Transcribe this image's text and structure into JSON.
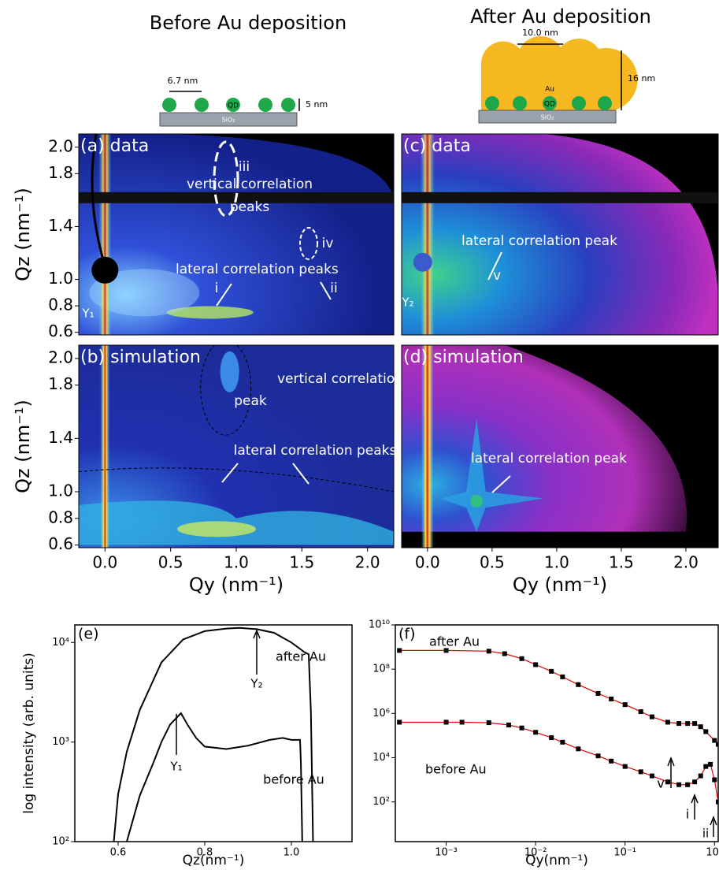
{
  "headers": [
    "Before Au deposition",
    "After Au deposition"
  ],
  "schematic_before": {
    "spacing": "6.7 nm",
    "height": "5 nm",
    "dot": "QD",
    "substrate": "SiO₂"
  },
  "schematic_after": {
    "spacing": "10.0 nm",
    "height": "16 nm",
    "cap": "Au",
    "dot": "QD",
    "substrate": "SiO₂"
  },
  "chart_data": [
    {
      "type": "image",
      "title": "(a) data",
      "colormap": "jet",
      "annotations": [
        "iii",
        "vertical correlation",
        "peaks",
        "iv",
        "lateral correlation peaks",
        "i",
        "ii",
        "Y₁"
      ],
      "xlim": [
        -0.2,
        2.2
      ],
      "ylim": [
        0.58,
        2.1
      ],
      "yticks": [
        {
          "value": 2,
          "label": "2.0"
        },
        1.8,
        1.4,
        {
          "value": 1,
          "label": "1.0"
        },
        0.8,
        0.6
      ],
      "ylabel": "Qz (nm⁻¹)"
    },
    {
      "type": "image",
      "title": "(c) data",
      "colormap": "magenta",
      "annotations": [
        "lateral correlation peak",
        "v",
        "Y₂"
      ],
      "xlim": [
        -0.2,
        2.25
      ],
      "ylim": [
        0.58,
        2.1
      ]
    },
    {
      "type": "image",
      "title": "(b) simulation",
      "colormap": "jet-sim",
      "annotations": [
        "vertical correlation",
        "peak",
        "lateral correlation peaks"
      ],
      "xlim": [
        -0.2,
        2.2
      ],
      "ylim": [
        0.58,
        2.1
      ],
      "yticks": [
        {
          "value": 2,
          "label": "2.0"
        },
        1.8,
        1.4,
        {
          "value": 1,
          "label": "1.0"
        },
        0.8,
        0.6
      ],
      "xticks": [
        {
          "value": 0,
          "label": "0.0"
        },
        0.5,
        {
          "value": 1,
          "label": "1.0"
        },
        1.5,
        {
          "value": 2,
          "label": "2.0"
        }
      ],
      "ylabel": "Qz (nm⁻¹)",
      "xlabel": "Qy (nm⁻¹)"
    },
    {
      "type": "image",
      "title": "(d) simulation",
      "colormap": "magenta-sim",
      "annotations": [
        "lateral correlation peak"
      ],
      "xlim": [
        -0.2,
        2.25
      ],
      "ylim": [
        0.58,
        2.1
      ],
      "xticks": [
        {
          "value": 0,
          "label": "0.0"
        },
        0.5,
        {
          "value": 1,
          "label": "1.0"
        },
        1.5,
        {
          "value": 2,
          "label": "2.0"
        }
      ],
      "xlabel": "Qy (nm⁻¹)"
    },
    {
      "type": "line",
      "title": "(e)",
      "ylog": true,
      "xlabel": "Qz(nm⁻¹)",
      "ylabel": "log intensity (arb. units)",
      "annotations": [
        "Y₂",
        "after Au",
        "Y₁",
        "before Au"
      ],
      "xlim": [
        0.5,
        1.14
      ],
      "ylim": [
        100,
        15000
      ],
      "xticks": [
        0.6,
        0.8,
        {
          "value": 1,
          "label": "1.0"
        }
      ],
      "yticks": [
        {
          "value": 100,
          "label": "10²"
        },
        {
          "value": 1000,
          "label": "10³"
        },
        {
          "value": 10000,
          "label": "10⁴"
        }
      ],
      "series": [
        {
          "color": "#000000",
          "x": [
            0.59,
            0.6,
            0.62,
            0.65,
            0.7,
            0.75,
            0.8,
            0.85,
            0.88,
            0.92,
            0.96,
            1.0,
            1.03,
            1.04,
            1.045,
            1.05
          ],
          "values": [
            100,
            300,
            800,
            2100,
            6300,
            10700,
            13000,
            13800,
            14000,
            13600,
            12500,
            10000,
            8000,
            7600,
            2000,
            100
          ]
        },
        {
          "color": "#000000",
          "x": [
            0.62,
            0.65,
            0.68,
            0.7,
            0.72,
            0.745,
            0.76,
            0.78,
            0.8,
            0.85,
            0.9,
            0.95,
            0.98,
            1.0,
            1.02,
            1.022,
            1.025
          ],
          "values": [
            100,
            290,
            600,
            1000,
            1500,
            1950,
            1500,
            1100,
            900,
            850,
            920,
            1050,
            1100,
            1050,
            1050,
            600,
            100
          ]
        }
      ]
    },
    {
      "type": "line",
      "title": "(f)",
      "xlog": true,
      "ylog": true,
      "xlabel": "Qy(nm⁻¹)",
      "annotations": [
        "after Au",
        "before Au",
        "v",
        "i",
        "ii"
      ],
      "xlim": [
        0.00027,
        1.1
      ],
      "ylim": [
        1.6,
        10000000000
      ],
      "xticks": [
        {
          "value": 0.001,
          "label": "10⁻³"
        },
        {
          "value": 0.01,
          "label": "10⁻²"
        },
        {
          "value": 0.1,
          "label": "10⁻¹"
        },
        {
          "value": 1,
          "label": "10⁰"
        }
      ],
      "yticks": [
        {
          "value": 100,
          "label": "10²"
        },
        {
          "value": 10000,
          "label": "10⁴"
        },
        {
          "value": 1000000,
          "label": "10⁶"
        },
        {
          "value": 100000000,
          "label": "10⁸"
        },
        {
          "value": 10000000000,
          "label": "10¹⁰"
        }
      ],
      "series": [
        {
          "color": "#e00000",
          "marker_color": "#000000",
          "x": [
            0.0003,
            0.001,
            0.003,
            0.0045,
            0.007,
            0.01,
            0.015,
            0.02,
            0.03,
            0.05,
            0.07,
            0.1,
            0.15,
            0.2,
            0.3,
            0.4,
            0.5,
            0.6,
            0.7,
            0.8,
            1.0,
            1.1
          ],
          "values": [
            700000000,
            700000000,
            650000000,
            500000000,
            300000000,
            160000000,
            80000000,
            45000000,
            20000000,
            8000000,
            4500000,
            2500000,
            1200000,
            700000,
            400000,
            350000,
            350000,
            350000,
            250000,
            150000,
            60000,
            40000
          ]
        },
        {
          "color": "#e00000",
          "marker_color": "#000000",
          "x": [
            0.0003,
            0.001,
            0.0015,
            0.003,
            0.005,
            0.007,
            0.01,
            0.015,
            0.02,
            0.03,
            0.05,
            0.07,
            0.1,
            0.15,
            0.2,
            0.3,
            0.4,
            0.5,
            0.6,
            0.7,
            0.8,
            0.9,
            1.0,
            1.1
          ],
          "values": [
            400000,
            400000,
            400000,
            380000,
            300000,
            220000,
            140000,
            80000,
            50000,
            25000,
            12000,
            7000,
            4000,
            2300,
            1500,
            800,
            600,
            600,
            800,
            1500,
            4000,
            5000,
            1000,
            100
          ]
        }
      ]
    }
  ]
}
